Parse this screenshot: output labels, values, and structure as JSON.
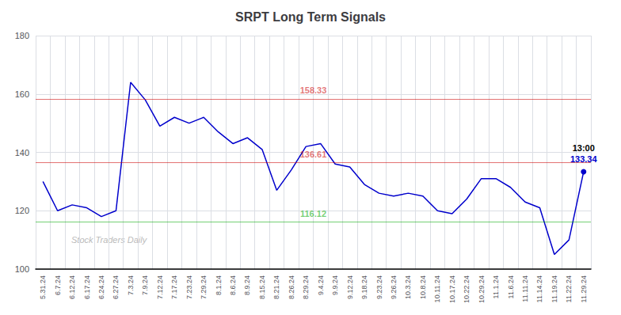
{
  "chart_data": {
    "type": "line",
    "title": "SRPT Long Term Signals",
    "categories": [
      "5.31.24",
      "6.7.24",
      "6.12.24",
      "6.17.24",
      "6.24.24",
      "6.27.24",
      "7.3.24",
      "7.9.24",
      "7.12.24",
      "7.17.24",
      "7.23.24",
      "7.29.24",
      "8.1.24",
      "8.6.24",
      "8.9.24",
      "8.15.24",
      "8.21.24",
      "8.26.24",
      "8.29.24",
      "9.4.24",
      "9.9.24",
      "9.12.24",
      "9.18.24",
      "9.23.24",
      "9.26.24",
      "10.3.24",
      "10.8.24",
      "10.11.24",
      "10.17.24",
      "10.22.24",
      "10.29.24",
      "11.1.24",
      "11.6.24",
      "11.11.24",
      "11.14.24",
      "11.19.24",
      "11.22.24",
      "11.29.24"
    ],
    "values": [
      130,
      120,
      122,
      121,
      118,
      120,
      164,
      158,
      149,
      152,
      150,
      152,
      147,
      143,
      145,
      141,
      127,
      134,
      142,
      143,
      136,
      135,
      129,
      126,
      125,
      126,
      125,
      120,
      119,
      124,
      131,
      131,
      128,
      123,
      121,
      105,
      110,
      133.34
    ],
    "color": "#0000cc",
    "ylim": [
      100,
      180
    ],
    "yticks": [
      100,
      120,
      140,
      160,
      180
    ],
    "grid": true,
    "reference_lines": [
      {
        "value": 158.33,
        "label": "158.33",
        "color": "#cc0000"
      },
      {
        "value": 136.61,
        "label": "136.61",
        "color": "#cc0000"
      },
      {
        "value": 116.12,
        "label": "116.12",
        "color": "#00aa00"
      }
    ],
    "annotations": [
      {
        "text": "13:00",
        "color": "#000000"
      },
      {
        "text": "133.34",
        "color": "#0000cc"
      }
    ],
    "watermark": "Stock Traders Daily"
  }
}
